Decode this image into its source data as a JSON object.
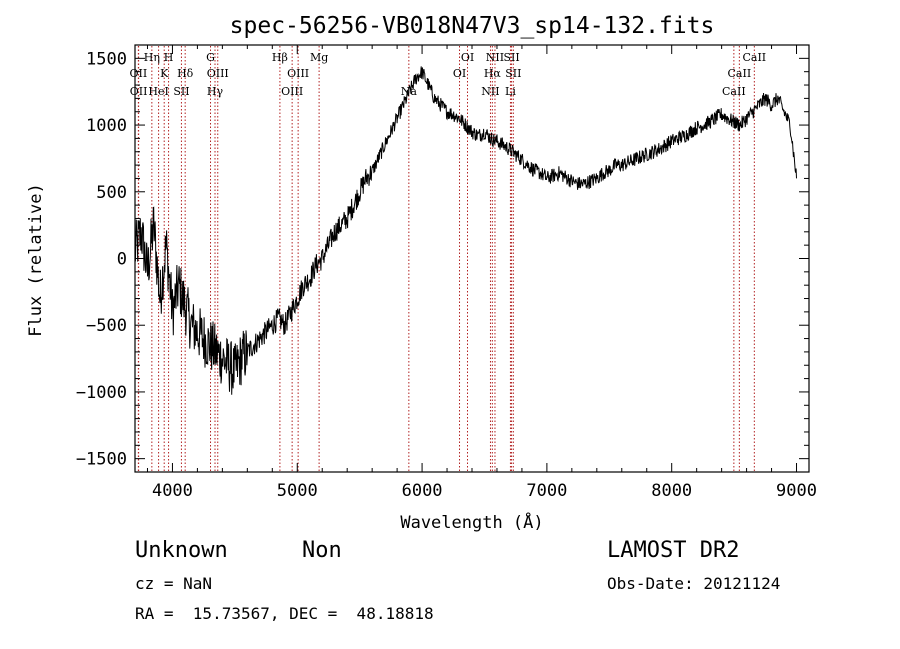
{
  "chart_data": {
    "type": "line",
    "title": "spec-56256-VB018N47V3_sp14-132.fits",
    "xlabel": "Wavelength (Å)",
    "ylabel": "Flux (relative)",
    "xlim": [
      3700,
      9100
    ],
    "ylim": [
      -1600,
      1600
    ],
    "xticks": [
      4000,
      5000,
      6000,
      7000,
      8000,
      9000
    ],
    "yticks": [
      -1500,
      -1000,
      -500,
      0,
      500,
      1000,
      1500
    ],
    "grid": false,
    "legend": "none",
    "line_color": "#000000",
    "marker_color": "#b22222",
    "series": [
      {
        "x": [
          3700,
          3750,
          3800,
          3850,
          3900,
          3950,
          4000,
          4050,
          4100,
          4150,
          4200,
          4250,
          4300,
          4350,
          4400,
          4450,
          4500,
          4550,
          4600,
          4650,
          4700,
          4750,
          4800,
          4850,
          4900,
          4950,
          5000,
          5050,
          5100,
          5150,
          5200,
          5250,
          5300,
          5350,
          5400,
          5450,
          5500,
          5550,
          5600,
          5650,
          5700,
          5750,
          5800,
          5850,
          5900,
          5950,
          6000,
          6050,
          6100,
          6150,
          6200,
          6250,
          6300,
          6350,
          6400,
          6450,
          6500,
          6550,
          6600,
          6650,
          6700,
          6750,
          6800,
          6850,
          6900,
          6950,
          7000,
          7050,
          7100,
          7150,
          7200,
          7250,
          7300,
          7350,
          7400,
          7450,
          7500,
          7550,
          7600,
          7650,
          7700,
          7750,
          7800,
          7850,
          7900,
          7950,
          8000,
          8050,
          8100,
          8150,
          8200,
          8250,
          8300,
          8350,
          8400,
          8450,
          8500,
          8550,
          8600,
          8650,
          8700,
          8750,
          8800,
          8850,
          8900,
          8950,
          9000
        ],
        "y": [
          50,
          200,
          -100,
          250,
          -300,
          100,
          -400,
          -200,
          -350,
          -500,
          -550,
          -600,
          -650,
          -700,
          -750,
          -800,
          -850,
          -750,
          -700,
          -650,
          -600,
          -550,
          -500,
          -450,
          -500,
          -400,
          -300,
          -200,
          -150,
          -50,
          0,
          100,
          200,
          250,
          300,
          400,
          500,
          600,
          650,
          750,
          850,
          950,
          1050,
          1150,
          1250,
          1350,
          1400,
          1300,
          1200,
          1150,
          1100,
          1080,
          1050,
          1000,
          950,
          920,
          950,
          900,
          880,
          850,
          820,
          780,
          740,
          700,
          660,
          640,
          600,
          620,
          640,
          610,
          580,
          560,
          560,
          580,
          600,
          640,
          660,
          700,
          700,
          720,
          740,
          760,
          780,
          800,
          820,
          850,
          880,
          900,
          920,
          950,
          980,
          1000,
          1020,
          1050,
          1080,
          1050,
          1020,
          1000,
          1050,
          1100,
          1150,
          1200,
          1150,
          1200,
          1100,
          1000,
          600
        ]
      }
    ],
    "spectral_lines": [
      {
        "name": "OII",
        "x": 3727,
        "row": 2
      },
      {
        "name": "OII",
        "x": 3729,
        "row": 3
      },
      {
        "name": "Hη",
        "x": 3835,
        "row": 1
      },
      {
        "name": "HeI",
        "x": 3889,
        "row": 3
      },
      {
        "name": "K",
        "x": 3934,
        "row": 2
      },
      {
        "name": "H",
        "x": 3969,
        "row": 1
      },
      {
        "name": "SII",
        "x": 4072,
        "row": 3
      },
      {
        "name": "Hδ",
        "x": 4102,
        "row": 2
      },
      {
        "name": "G",
        "x": 4305,
        "row": 1
      },
      {
        "name": "OIII",
        "x": 4363,
        "row": 2
      },
      {
        "name": "Hγ",
        "x": 4341,
        "row": 3
      },
      {
        "name": "Hβ",
        "x": 4861,
        "row": 1
      },
      {
        "name": "OIII",
        "x": 4959,
        "row": 3
      },
      {
        "name": "OIII",
        "x": 5007,
        "row": 2
      },
      {
        "name": "Mg",
        "x": 5175,
        "row": 1
      },
      {
        "name": "Na",
        "x": 5894,
        "row": 3
      },
      {
        "name": "OI",
        "x": 6300,
        "row": 2
      },
      {
        "name": "OI",
        "x": 6364,
        "row": 1
      },
      {
        "name": "NII",
        "x": 6548,
        "row": 3
      },
      {
        "name": "Hα",
        "x": 6563,
        "row": 2
      },
      {
        "name": "NII",
        "x": 6584,
        "row": 1
      },
      {
        "name": "Li",
        "x": 6708,
        "row": 3
      },
      {
        "name": "SII",
        "x": 6717,
        "row": 1
      },
      {
        "name": "SII",
        "x": 6731,
        "row": 2
      },
      {
        "name": "CaII",
        "x": 8498,
        "row": 3
      },
      {
        "name": "CaII",
        "x": 8542,
        "row": 2
      },
      {
        "name": "CaII",
        "x": 8662,
        "row": 1
      }
    ]
  },
  "info": {
    "class": "Unknown",
    "subclass": "Non",
    "survey": "LAMOST DR2",
    "cz": "cz = NaN",
    "obs_date": "Obs-Date: 20121124",
    "coords": "RA =  15.73567, DEC =  48.18818"
  }
}
